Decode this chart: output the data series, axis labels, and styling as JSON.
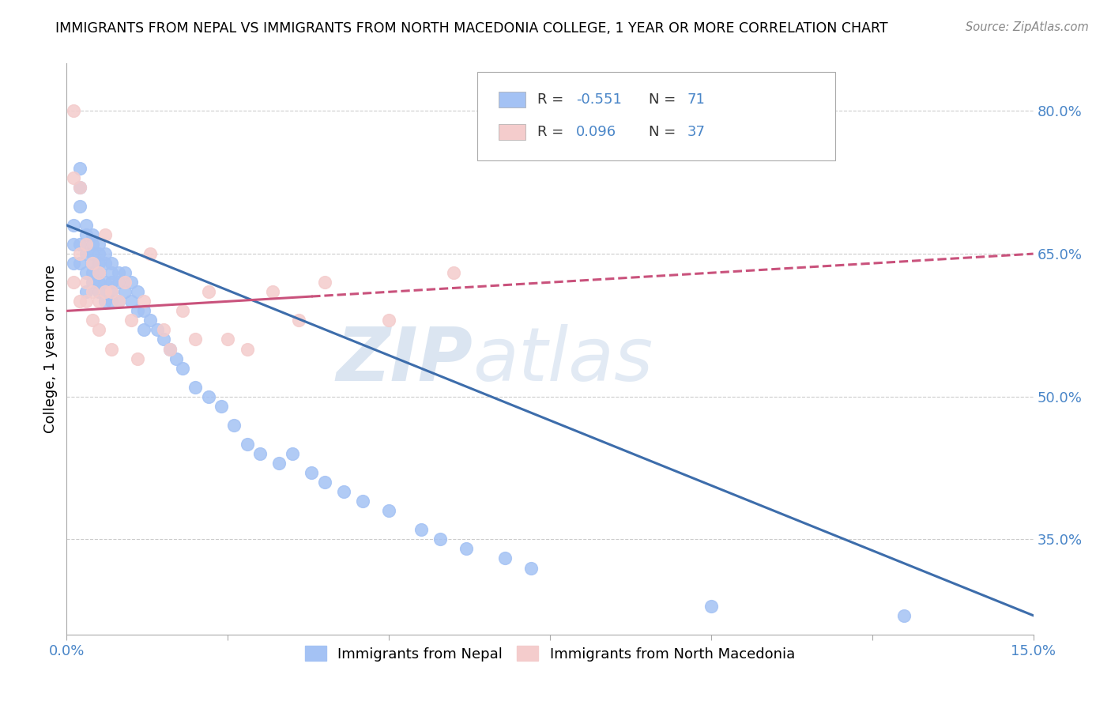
{
  "title": "IMMIGRANTS FROM NEPAL VS IMMIGRANTS FROM NORTH MACEDONIA COLLEGE, 1 YEAR OR MORE CORRELATION CHART",
  "source": "Source: ZipAtlas.com",
  "ylabel": "College, 1 year or more",
  "x_min": 0.0,
  "x_max": 0.15,
  "y_min": 0.25,
  "y_max": 0.85,
  "x_ticks": [
    0.0,
    0.025,
    0.05,
    0.075,
    0.1,
    0.125,
    0.15
  ],
  "x_tick_labels": [
    "0.0%",
    "",
    "",
    "",
    "",
    "",
    "15.0%"
  ],
  "y_ticks": [
    0.35,
    0.5,
    0.65,
    0.8
  ],
  "y_tick_labels": [
    "35.0%",
    "50.0%",
    "65.0%",
    "80.0%"
  ],
  "legend_label1": "Immigrants from Nepal",
  "legend_label2": "Immigrants from North Macedonia",
  "R1": -0.551,
  "N1": 71,
  "R2": 0.096,
  "N2": 37,
  "color_blue": "#a4c2f4",
  "color_pink": "#f4cccc",
  "color_blue_line": "#3d6dab",
  "color_pink_line": "#c9527c",
  "watermark_zip": "ZIP",
  "watermark_atlas": "atlas",
  "nepal_x": [
    0.001,
    0.001,
    0.001,
    0.002,
    0.002,
    0.002,
    0.002,
    0.002,
    0.003,
    0.003,
    0.003,
    0.003,
    0.003,
    0.004,
    0.004,
    0.004,
    0.004,
    0.004,
    0.004,
    0.005,
    0.005,
    0.005,
    0.005,
    0.005,
    0.005,
    0.006,
    0.006,
    0.006,
    0.006,
    0.007,
    0.007,
    0.007,
    0.007,
    0.007,
    0.008,
    0.008,
    0.008,
    0.009,
    0.009,
    0.01,
    0.01,
    0.011,
    0.011,
    0.012,
    0.012,
    0.013,
    0.014,
    0.015,
    0.016,
    0.017,
    0.018,
    0.02,
    0.022,
    0.024,
    0.026,
    0.028,
    0.03,
    0.033,
    0.035,
    0.038,
    0.04,
    0.043,
    0.046,
    0.05,
    0.055,
    0.058,
    0.062,
    0.068,
    0.072,
    0.1,
    0.13
  ],
  "nepal_y": [
    0.68,
    0.66,
    0.64,
    0.7,
    0.72,
    0.74,
    0.66,
    0.64,
    0.67,
    0.65,
    0.63,
    0.61,
    0.68,
    0.66,
    0.64,
    0.62,
    0.67,
    0.65,
    0.63,
    0.65,
    0.63,
    0.61,
    0.66,
    0.64,
    0.62,
    0.64,
    0.62,
    0.6,
    0.65,
    0.63,
    0.61,
    0.64,
    0.62,
    0.6,
    0.62,
    0.6,
    0.63,
    0.61,
    0.63,
    0.6,
    0.62,
    0.59,
    0.61,
    0.57,
    0.59,
    0.58,
    0.57,
    0.56,
    0.55,
    0.54,
    0.53,
    0.51,
    0.5,
    0.49,
    0.47,
    0.45,
    0.44,
    0.43,
    0.44,
    0.42,
    0.41,
    0.4,
    0.39,
    0.38,
    0.36,
    0.35,
    0.34,
    0.33,
    0.32,
    0.28,
    0.27
  ],
  "macedonia_x": [
    0.001,
    0.001,
    0.001,
    0.002,
    0.002,
    0.002,
    0.003,
    0.003,
    0.003,
    0.004,
    0.004,
    0.004,
    0.005,
    0.005,
    0.005,
    0.006,
    0.006,
    0.007,
    0.007,
    0.008,
    0.009,
    0.01,
    0.011,
    0.012,
    0.013,
    0.015,
    0.016,
    0.018,
    0.02,
    0.022,
    0.025,
    0.028,
    0.032,
    0.036,
    0.04,
    0.05,
    0.06
  ],
  "macedonia_y": [
    0.8,
    0.73,
    0.62,
    0.72,
    0.65,
    0.6,
    0.66,
    0.62,
    0.6,
    0.64,
    0.61,
    0.58,
    0.63,
    0.6,
    0.57,
    0.67,
    0.61,
    0.61,
    0.55,
    0.6,
    0.62,
    0.58,
    0.54,
    0.6,
    0.65,
    0.57,
    0.55,
    0.59,
    0.56,
    0.61,
    0.56,
    0.55,
    0.61,
    0.58,
    0.62,
    0.58,
    0.63
  ]
}
